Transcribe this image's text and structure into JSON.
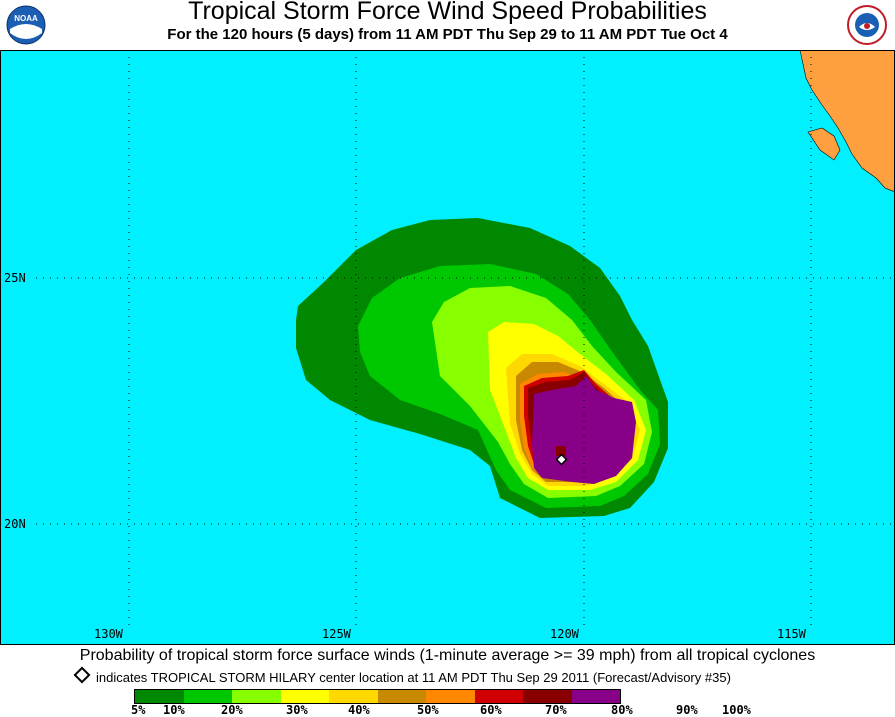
{
  "header": {
    "title": "Tropical Storm Force Wind Speed Probabilities",
    "subtitle": "For the 120 hours (5 days) from 11 AM PDT Thu Sep 29 to 11 AM PDT Tue Oct 4",
    "logo_left": "NOAA",
    "logo_right": "NATIONAL WEATHER SERVICE"
  },
  "map": {
    "ocean_color": "#00f0ff",
    "land_color": "#ffa040",
    "latitude_labels": [
      "25N",
      "20N"
    ],
    "longitude_labels": [
      "130W",
      "125W",
      "120W",
      "115W"
    ],
    "storm_center_icon": "diamond-marker"
  },
  "footer": {
    "caption": "Probability of tropical storm force surface winds (1-minute average >= 39 mph) from all tropical cyclones",
    "center_note": "indicates TROPICAL STORM HILARY center location at 11 AM PDT Thu Sep 29 2011 (Forecast/Advisory #35)"
  },
  "legend": {
    "colors": [
      "#008800",
      "#00c800",
      "#88ff00",
      "#ffff00",
      "#ffd800",
      "#c88800",
      "#ff8800",
      "#d00000",
      "#880000",
      "#880088"
    ],
    "labels": [
      "5%",
      "10%",
      "20%",
      "30%",
      "40%",
      "50%",
      "60%",
      "70%",
      "80%",
      "90%",
      "100%"
    ]
  }
}
